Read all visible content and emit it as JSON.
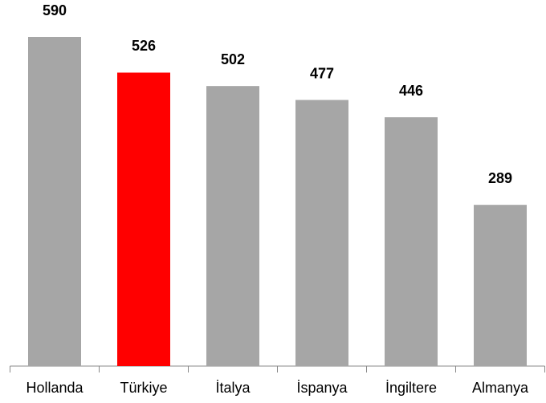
{
  "chart_data": {
    "type": "bar",
    "categories": [
      "Hollanda",
      "Türkiye",
      "İtalya",
      "İspanya",
      "İngiltere",
      "Almanya"
    ],
    "values": [
      590,
      526,
      502,
      477,
      446,
      289
    ],
    "colors": [
      "#a6a6a6",
      "#ff0000",
      "#a6a6a6",
      "#a6a6a6",
      "#a6a6a6",
      "#a6a6a6"
    ]
  }
}
